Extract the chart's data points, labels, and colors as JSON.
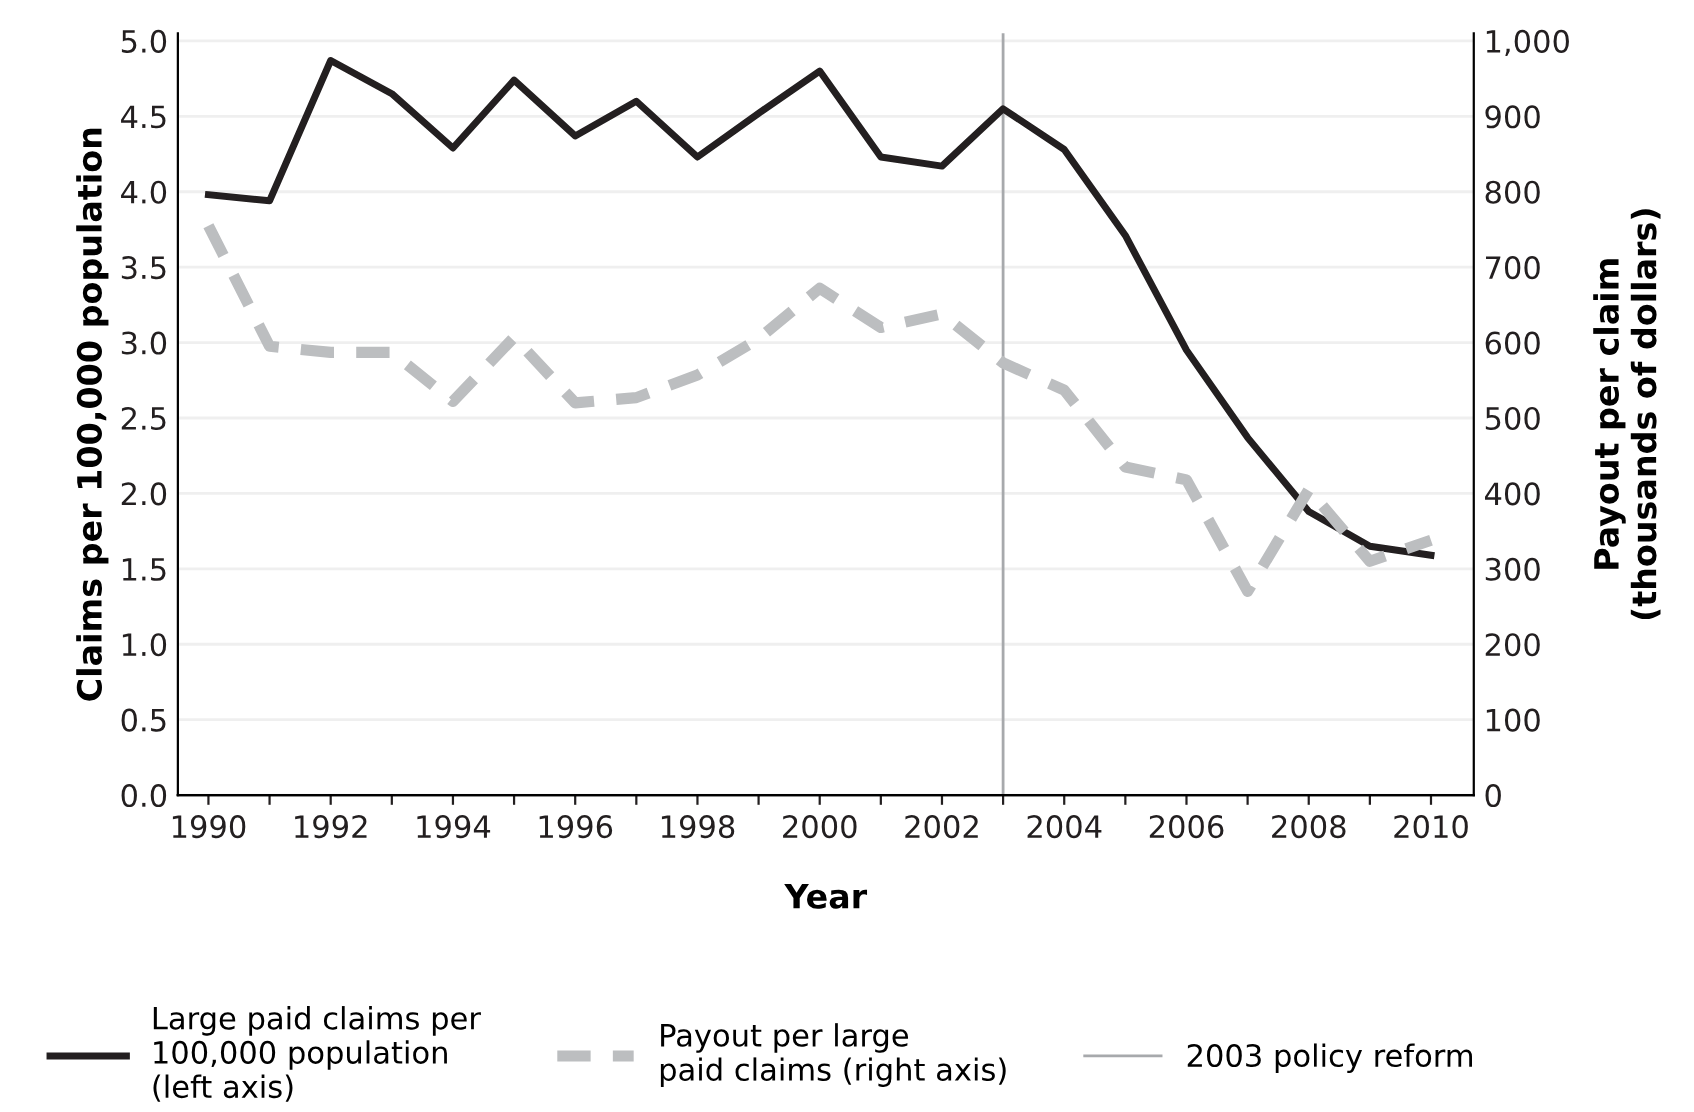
{
  "chart_data": {
    "type": "line",
    "xlabel": "Year",
    "ylabel": "Claims per 100,000 population",
    "y2label": "Payout per claim\n(thousands of dollars)",
    "x": [
      1990,
      1991,
      1992,
      1993,
      1994,
      1995,
      1996,
      1997,
      1998,
      1999,
      2000,
      2001,
      2002,
      2003,
      2004,
      2005,
      2006,
      2007,
      2008,
      2009,
      2010
    ],
    "series": [
      {
        "name": "Large paid claims per\n100,000 population\n(left axis)",
        "color": "#231f20",
        "line_style": "solid",
        "values": [
          3.98,
          3.94,
          4.87,
          4.65,
          4.29,
          4.74,
          4.37,
          4.6,
          4.23,
          4.52,
          4.8,
          4.23,
          4.17,
          4.55,
          4.28,
          3.71,
          2.95,
          2.37,
          1.88,
          1.65,
          1.59
        ]
      },
      {
        "name": "Payout per large\npaid claims (right axis)",
        "color": "#bcbec0",
        "line_style": "dashed",
        "axis": "y2",
        "values": [
          755,
          595,
          587,
          587,
          522,
          607,
          520,
          527,
          557,
          605,
          672,
          620,
          638,
          573,
          537,
          435,
          418,
          270,
          405,
          310,
          338
        ]
      }
    ],
    "xlim": [
      1989.5,
      2010.7
    ],
    "xticks": [
      1990,
      {
        "value": 1991,
        "label": null
      },
      1992,
      {
        "value": 1993,
        "label": null
      },
      1994,
      {
        "value": 1995,
        "label": null
      },
      1996,
      {
        "value": 1997,
        "label": null
      },
      1998,
      {
        "value": 1999,
        "label": null
      },
      2000,
      {
        "value": 2001,
        "label": null
      },
      2002,
      {
        "value": 2003,
        "label": null
      },
      2004,
      {
        "value": 2005,
        "label": null
      },
      2006,
      {
        "value": 2007,
        "label": null
      },
      2008,
      {
        "value": 2009,
        "label": null
      },
      2010
    ],
    "ylim": [
      0,
      5.05
    ],
    "yticks": [
      {
        "value": 0,
        "label": "0.0"
      },
      0.5,
      {
        "value": 1,
        "label": "1.0"
      },
      1.5,
      {
        "value": 2,
        "label": "2.0"
      },
      2.5,
      {
        "value": 3,
        "label": "3.0"
      },
      3.5,
      {
        "value": 4,
        "label": "4.0"
      },
      4.5,
      {
        "value": 5,
        "label": "5.0"
      }
    ],
    "y2lim": [
      0,
      1010
    ],
    "y2ticks": [
      0,
      100,
      200,
      300,
      400,
      500,
      600,
      700,
      800,
      900,
      {
        "value": 1000,
        "label": "1,000"
      }
    ],
    "ref_lines": [
      {
        "axis": "x",
        "value": 2003,
        "label": "2003 policy reform",
        "color": "#a7a9ac"
      }
    ],
    "grid": "y",
    "legend": "bottom"
  }
}
